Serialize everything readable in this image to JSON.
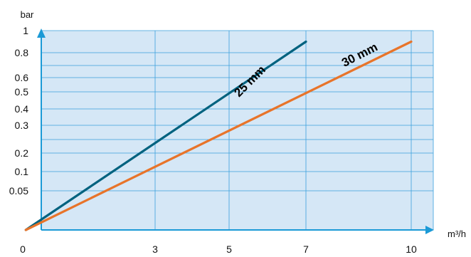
{
  "chart_data": {
    "type": "line",
    "xlabel": "m³/h",
    "ylabel": "bar",
    "x_ticks": [
      "0",
      "3",
      "5",
      "7",
      "10"
    ],
    "y_ticks": [
      "1",
      "0.8",
      "0.6",
      "0.5",
      "0.4",
      "0.3",
      "0.2",
      "0.1",
      "0.05"
    ],
    "y_scale": "non-uniform (log-like)",
    "grid": true,
    "series": [
      {
        "name": "25 mm",
        "color": "#00627f",
        "points": [
          [
            0.5,
            0.0
          ],
          [
            7,
            0.9
          ]
        ]
      },
      {
        "name": "30 mm",
        "color": "#e8742a",
        "points": [
          [
            0.5,
            0.0
          ],
          [
            10,
            0.9
          ]
        ]
      }
    ],
    "colors": {
      "plot_background": "#d5e7f6",
      "grid": "#3aa0dc",
      "axis_arrow": "#1b9ad6"
    }
  }
}
